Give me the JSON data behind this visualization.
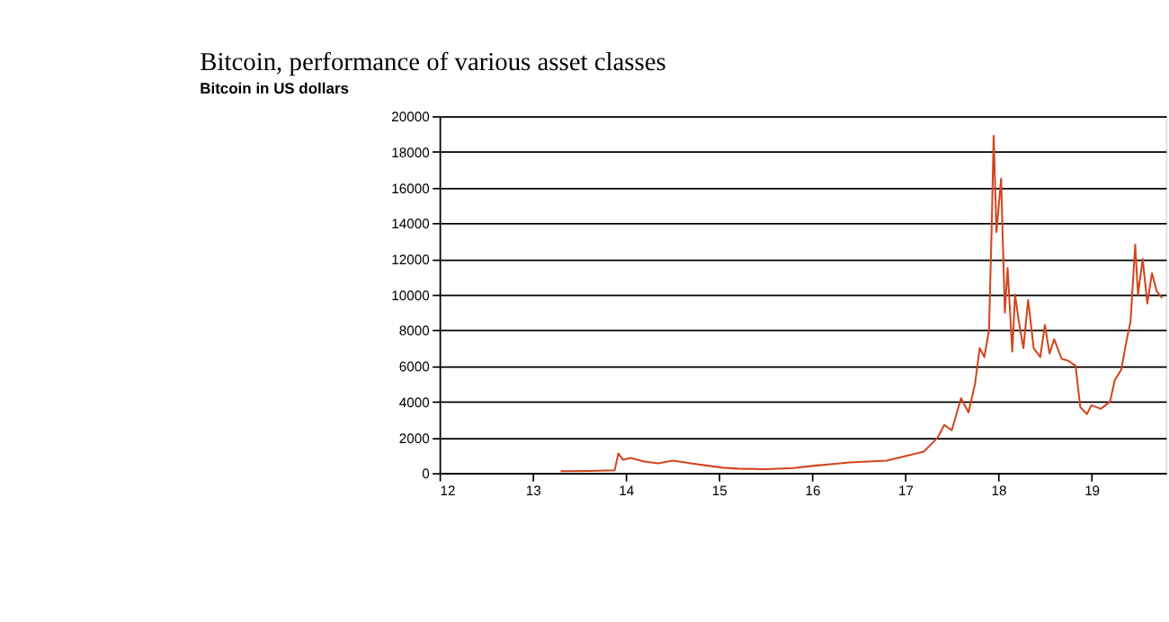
{
  "chart_data": {
    "type": "line",
    "title": "Bitcoin, performance of various asset classes",
    "subtitle": "Bitcoin in US dollars",
    "x": [
      13.3,
      13.6,
      13.88,
      13.92,
      13.97,
      14.05,
      14.2,
      14.35,
      14.5,
      14.7,
      14.9,
      15.05,
      15.2,
      15.5,
      15.8,
      16.0,
      16.2,
      16.4,
      16.6,
      16.8,
      17.0,
      17.2,
      17.35,
      17.42,
      17.5,
      17.6,
      17.68,
      17.75,
      17.8,
      17.85,
      17.9,
      17.93,
      17.95,
      17.98,
      18.03,
      18.07,
      18.1,
      18.15,
      18.18,
      18.22,
      18.27,
      18.32,
      18.38,
      18.45,
      18.5,
      18.55,
      18.6,
      18.68,
      18.75,
      18.83,
      18.88,
      18.95,
      19.0,
      19.1,
      19.2,
      19.25,
      19.32,
      19.38,
      19.42,
      19.47,
      19.5,
      19.55,
      19.6,
      19.65,
      19.7,
      19.76
    ],
    "values": [
      100,
      120,
      150,
      1100,
      750,
      850,
      650,
      550,
      700,
      550,
      400,
      300,
      250,
      220,
      280,
      400,
      500,
      600,
      650,
      700,
      950,
      1200,
      2000,
      2700,
      2400,
      4200,
      3400,
      5000,
      7000,
      6500,
      8000,
      14000,
      18900,
      13500,
      16500,
      9000,
      11500,
      6800,
      10000,
      8500,
      7000,
      9700,
      7000,
      6500,
      8300,
      6700,
      7500,
      6400,
      6300,
      6000,
      3700,
      3300,
      3800,
      3600,
      4000,
      5200,
      5800,
      7500,
      8500,
      12800,
      10000,
      12000,
      9500,
      11200,
      10200,
      9800
    ],
    "color": "#d2451e",
    "xlim": [
      12,
      19.8
    ],
    "xticks": [
      12,
      13,
      14,
      15,
      16,
      17,
      18,
      19
    ],
    "ylim": [
      0,
      20000
    ],
    "yticks": [
      0,
      2000,
      4000,
      6000,
      8000,
      10000,
      12000,
      14000,
      16000,
      18000,
      20000
    ],
    "grid": "y"
  }
}
